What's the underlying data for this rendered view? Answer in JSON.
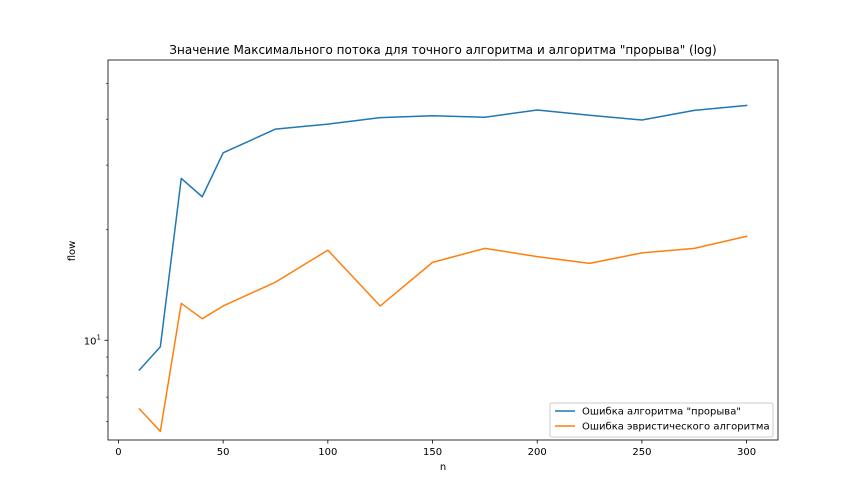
{
  "chart_data": {
    "type": "line",
    "title": "Значение Максимального потока для точного алгоритма и алгоритма \"прорыва\" (log)",
    "xlabel": "n",
    "ylabel": "flow",
    "yscale": "log",
    "xlim": [
      -5,
      315
    ],
    "ylim": [
      5.35,
      58
    ],
    "xticks": [
      0,
      50,
      100,
      150,
      200,
      250,
      300
    ],
    "xtick_labels": [
      "0",
      "50",
      "100",
      "150",
      "200",
      "250",
      "300"
    ],
    "ytick_label_base": "10",
    "ytick_label_exp": "1",
    "grid": false,
    "legend_position": "lower-right",
    "series": [
      {
        "name": "Ошибка алгоритма \"прорыва\"",
        "color": "#1f77b4",
        "x": [
          10,
          20,
          30,
          40,
          50,
          75,
          100,
          125,
          150,
          175,
          200,
          225,
          250,
          275,
          300
        ],
        "y": [
          8.3,
          9.6,
          27.6,
          24.6,
          32.4,
          37.6,
          38.8,
          40.4,
          40.9,
          40.5,
          42.4,
          41.0,
          39.8,
          42.3,
          43.6
        ]
      },
      {
        "name": "Ошибка эвристического алгоритма",
        "color": "#ff7f0e",
        "x": [
          10,
          20,
          30,
          40,
          50,
          75,
          100,
          125,
          150,
          175,
          200,
          225,
          250,
          275,
          300
        ],
        "y": [
          6.5,
          5.65,
          12.6,
          11.45,
          12.4,
          14.4,
          17.6,
          12.4,
          16.3,
          17.8,
          16.9,
          16.2,
          17.3,
          17.8,
          19.2
        ]
      }
    ]
  }
}
